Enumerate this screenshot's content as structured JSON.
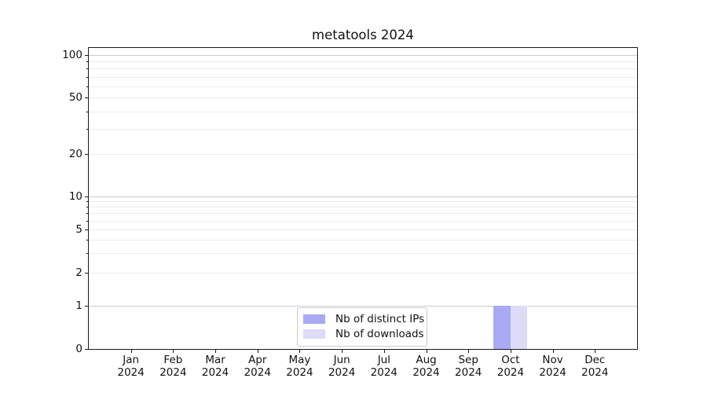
{
  "chart_data": {
    "type": "bar",
    "title": "metatools 2024",
    "x_tick_labels": [
      {
        "month": "Jan",
        "year": "2024"
      },
      {
        "month": "Feb",
        "year": "2024"
      },
      {
        "month": "Mar",
        "year": "2024"
      },
      {
        "month": "Apr",
        "year": "2024"
      },
      {
        "month": "May",
        "year": "2024"
      },
      {
        "month": "Jun",
        "year": "2024"
      },
      {
        "month": "Jul",
        "year": "2024"
      },
      {
        "month": "Aug",
        "year": "2024"
      },
      {
        "month": "Sep",
        "year": "2024"
      },
      {
        "month": "Oct",
        "year": "2024"
      },
      {
        "month": "Nov",
        "year": "2024"
      },
      {
        "month": "Dec",
        "year": "2024"
      }
    ],
    "series": [
      {
        "name": "Nb of distinct IPs",
        "color": "#a9a9f6",
        "values": [
          0,
          0,
          0,
          0,
          0,
          0,
          0,
          0,
          0,
          1,
          0,
          0
        ]
      },
      {
        "name": "Nb of downloads",
        "color": "#dcdcf8",
        "values": [
          0,
          0,
          0,
          0,
          0,
          0,
          0,
          0,
          0,
          1,
          0,
          0
        ]
      }
    ],
    "y_axis": {
      "scale": "symlog (linear 0 to 1, logarithmic above 1)",
      "labeled_ticks": [
        0,
        1,
        2,
        5,
        10,
        20,
        50,
        100
      ],
      "minor_ticks": [
        3,
        4,
        6,
        7,
        8,
        9,
        30,
        40,
        60,
        70,
        80,
        90
      ],
      "gridlines_major": [
        1,
        10,
        100
      ],
      "gridlines_minor": [
        2,
        3,
        4,
        5,
        6,
        7,
        8,
        9,
        20,
        30,
        40,
        50,
        60,
        70,
        80,
        90
      ],
      "ylim": [
        0,
        110
      ]
    },
    "legend": {
      "position": "lower center",
      "entries": [
        "Nb of distinct IPs",
        "Nb of downloads"
      ]
    },
    "grid": "horizontal only"
  },
  "colors": {
    "series_distinct_ips": "#a9a9f6",
    "series_downloads": "#dcdcf8",
    "grid_major": "#cbcbcb",
    "grid_minor": "#ececec",
    "axis": "#1a1a1a",
    "legend_border": "#cccccc",
    "background": "#ffffff"
  }
}
